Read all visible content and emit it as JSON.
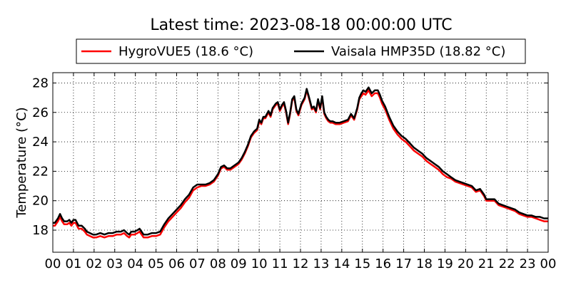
{
  "chart_data": {
    "type": "line",
    "title": "Latest time: 2023-08-18 00:00:00 UTC",
    "xlabel": "",
    "ylabel": "Temperature (°C)",
    "x_ticks": [
      "00",
      "01",
      "02",
      "03",
      "04",
      "05",
      "06",
      "07",
      "08",
      "09",
      "10",
      "11",
      "12",
      "13",
      "14",
      "15",
      "16",
      "17",
      "18",
      "19",
      "20",
      "21",
      "22",
      "23",
      "00"
    ],
    "y_ticks": [
      "18",
      "20",
      "22",
      "24",
      "26",
      "28"
    ],
    "xlim": [
      0,
      24
    ],
    "ylim": [
      16.5,
      28.7
    ],
    "grid": true,
    "legend_position": "top-center, above plot",
    "series": [
      {
        "name": "HygroVUE5 (18.6 °C)",
        "color": "#ff0000",
        "x": [
          0,
          0.1,
          0.25,
          0.35,
          0.45,
          0.55,
          0.7,
          0.8,
          0.9,
          1.0,
          1.1,
          1.25,
          1.4,
          1.55,
          1.65,
          1.8,
          1.95,
          2.1,
          2.3,
          2.5,
          2.7,
          2.9,
          3.1,
          3.3,
          3.45,
          3.6,
          3.7,
          3.8,
          3.95,
          4.1,
          4.2,
          4.4,
          4.6,
          4.8,
          5.0,
          5.2,
          5.4,
          5.6,
          5.8,
          6.0,
          6.2,
          6.4,
          6.6,
          6.8,
          7.0,
          7.2,
          7.4,
          7.6,
          7.8,
          8.0,
          8.15,
          8.3,
          8.45,
          8.6,
          8.8,
          9.0,
          9.15,
          9.3,
          9.45,
          9.6,
          9.75,
          9.9,
          10.0,
          10.1,
          10.2,
          10.3,
          10.45,
          10.55,
          10.65,
          10.8,
          10.9,
          11.0,
          11.1,
          11.2,
          11.3,
          11.4,
          11.5,
          11.6,
          11.7,
          11.8,
          11.9,
          12.05,
          12.2,
          12.3,
          12.4,
          12.55,
          12.65,
          12.75,
          12.85,
          12.95,
          13.05,
          13.15,
          13.25,
          13.35,
          13.45,
          13.55,
          13.7,
          13.9,
          14.1,
          14.3,
          14.45,
          14.6,
          14.75,
          14.85,
          14.95,
          15.05,
          15.15,
          15.3,
          15.45,
          15.6,
          15.75,
          15.85,
          15.95,
          16.1,
          16.3,
          16.5,
          16.7,
          16.9,
          17.1,
          17.3,
          17.5,
          17.7,
          17.9,
          18.1,
          18.3,
          18.5,
          18.7,
          18.9,
          19.1,
          19.3,
          19.5,
          19.7,
          19.9,
          20.1,
          20.3,
          20.5,
          20.7,
          20.9,
          21.0,
          21.2,
          21.4,
          21.6,
          21.8,
          22.0,
          22.2,
          22.4,
          22.6,
          22.8,
          23.0,
          23.2,
          23.4,
          23.6,
          23.8,
          24.0
        ],
        "y": [
          18.3,
          18.3,
          18.6,
          18.9,
          18.6,
          18.4,
          18.4,
          18.5,
          18.3,
          18.5,
          18.5,
          18.1,
          18.1,
          17.9,
          17.7,
          17.6,
          17.5,
          17.5,
          17.6,
          17.5,
          17.6,
          17.6,
          17.7,
          17.7,
          17.8,
          17.6,
          17.5,
          17.7,
          17.7,
          17.8,
          17.9,
          17.5,
          17.5,
          17.6,
          17.6,
          17.7,
          18.2,
          18.6,
          18.9,
          19.2,
          19.5,
          19.9,
          20.2,
          20.7,
          20.9,
          21.0,
          21.0,
          21.1,
          21.3,
          21.7,
          22.2,
          22.3,
          22.1,
          22.1,
          22.3,
          22.5,
          22.8,
          23.2,
          23.7,
          24.3,
          24.6,
          24.8,
          25.4,
          25.2,
          25.6,
          25.6,
          26.0,
          25.7,
          26.2,
          26.5,
          26.6,
          26.1,
          26.4,
          26.6,
          26.0,
          25.2,
          25.9,
          26.8,
          27.0,
          26.1,
          25.8,
          26.5,
          26.9,
          27.5,
          27.0,
          26.2,
          26.3,
          26.0,
          26.8,
          26.2,
          27.0,
          25.9,
          25.6,
          25.4,
          25.3,
          25.3,
          25.2,
          25.2,
          25.3,
          25.4,
          25.8,
          25.5,
          26.2,
          26.9,
          27.1,
          27.3,
          27.2,
          27.5,
          27.1,
          27.3,
          27.3,
          27.0,
          26.6,
          26.2,
          25.5,
          24.9,
          24.5,
          24.2,
          24.0,
          23.7,
          23.4,
          23.2,
          23.0,
          22.7,
          22.5,
          22.3,
          22.1,
          21.8,
          21.6,
          21.5,
          21.3,
          21.2,
          21.1,
          21.0,
          20.9,
          20.6,
          20.7,
          20.3,
          20.0,
          20.0,
          20.0,
          19.7,
          19.6,
          19.5,
          19.4,
          19.3,
          19.1,
          19.0,
          18.9,
          18.9,
          18.8,
          18.7,
          18.6,
          18.6
        ]
      },
      {
        "name": "Vaisala HMP35D (18.82 °C)",
        "color": "#000000",
        "x": [
          0,
          0.1,
          0.25,
          0.35,
          0.45,
          0.55,
          0.7,
          0.8,
          0.9,
          1.0,
          1.1,
          1.25,
          1.4,
          1.55,
          1.65,
          1.8,
          1.95,
          2.1,
          2.3,
          2.5,
          2.7,
          2.9,
          3.1,
          3.3,
          3.45,
          3.6,
          3.7,
          3.8,
          3.95,
          4.1,
          4.2,
          4.4,
          4.6,
          4.8,
          5.0,
          5.2,
          5.4,
          5.6,
          5.8,
          6.0,
          6.2,
          6.4,
          6.6,
          6.8,
          7.0,
          7.2,
          7.4,
          7.6,
          7.8,
          8.0,
          8.15,
          8.3,
          8.45,
          8.6,
          8.8,
          9.0,
          9.15,
          9.3,
          9.45,
          9.6,
          9.75,
          9.9,
          10.0,
          10.1,
          10.2,
          10.3,
          10.45,
          10.55,
          10.65,
          10.8,
          10.9,
          11.0,
          11.1,
          11.2,
          11.3,
          11.4,
          11.5,
          11.6,
          11.7,
          11.8,
          11.9,
          12.05,
          12.2,
          12.3,
          12.4,
          12.55,
          12.65,
          12.75,
          12.85,
          12.95,
          13.05,
          13.15,
          13.25,
          13.35,
          13.45,
          13.55,
          13.7,
          13.9,
          14.1,
          14.3,
          14.45,
          14.6,
          14.75,
          14.85,
          14.95,
          15.05,
          15.15,
          15.3,
          15.45,
          15.6,
          15.75,
          15.85,
          15.95,
          16.1,
          16.3,
          16.5,
          16.7,
          16.9,
          17.1,
          17.3,
          17.5,
          17.7,
          17.9,
          18.1,
          18.3,
          18.5,
          18.7,
          18.9,
          19.1,
          19.3,
          19.5,
          19.7,
          19.9,
          20.1,
          20.3,
          20.5,
          20.7,
          20.9,
          21.0,
          21.2,
          21.4,
          21.6,
          21.8,
          22.0,
          22.2,
          22.4,
          22.6,
          22.8,
          23.0,
          23.2,
          23.4,
          23.6,
          23.8,
          24.0
        ],
        "y": [
          18.5,
          18.5,
          18.8,
          19.1,
          18.8,
          18.6,
          18.6,
          18.7,
          18.5,
          18.7,
          18.7,
          18.3,
          18.3,
          18.1,
          17.9,
          17.8,
          17.7,
          17.7,
          17.8,
          17.7,
          17.8,
          17.8,
          17.9,
          17.9,
          18.0,
          17.8,
          17.7,
          17.9,
          17.9,
          18.0,
          18.1,
          17.7,
          17.7,
          17.8,
          17.8,
          17.9,
          18.4,
          18.8,
          19.1,
          19.4,
          19.7,
          20.1,
          20.4,
          20.9,
          21.1,
          21.1,
          21.1,
          21.2,
          21.4,
          21.8,
          22.3,
          22.4,
          22.2,
          22.2,
          22.4,
          22.6,
          22.9,
          23.3,
          23.8,
          24.4,
          24.7,
          24.9,
          25.5,
          25.3,
          25.7,
          25.7,
          26.1,
          25.8,
          26.3,
          26.6,
          26.7,
          26.2,
          26.5,
          26.7,
          26.1,
          25.3,
          26.0,
          26.9,
          27.1,
          26.2,
          25.9,
          26.6,
          27.0,
          27.6,
          27.1,
          26.3,
          26.4,
          26.1,
          26.9,
          26.3,
          27.1,
          26.0,
          25.7,
          25.5,
          25.4,
          25.4,
          25.3,
          25.3,
          25.4,
          25.5,
          25.9,
          25.6,
          26.3,
          27.0,
          27.3,
          27.5,
          27.4,
          27.7,
          27.3,
          27.5,
          27.5,
          27.2,
          26.8,
          26.4,
          25.7,
          25.1,
          24.7,
          24.4,
          24.2,
          23.9,
          23.6,
          23.4,
          23.2,
          22.9,
          22.7,
          22.5,
          22.3,
          22.0,
          21.8,
          21.6,
          21.4,
          21.3,
          21.2,
          21.1,
          21.0,
          20.7,
          20.8,
          20.4,
          20.1,
          20.1,
          20.1,
          19.8,
          19.7,
          19.6,
          19.5,
          19.4,
          19.2,
          19.1,
          19.0,
          19.0,
          18.9,
          18.9,
          18.8,
          18.8
        ]
      }
    ]
  }
}
